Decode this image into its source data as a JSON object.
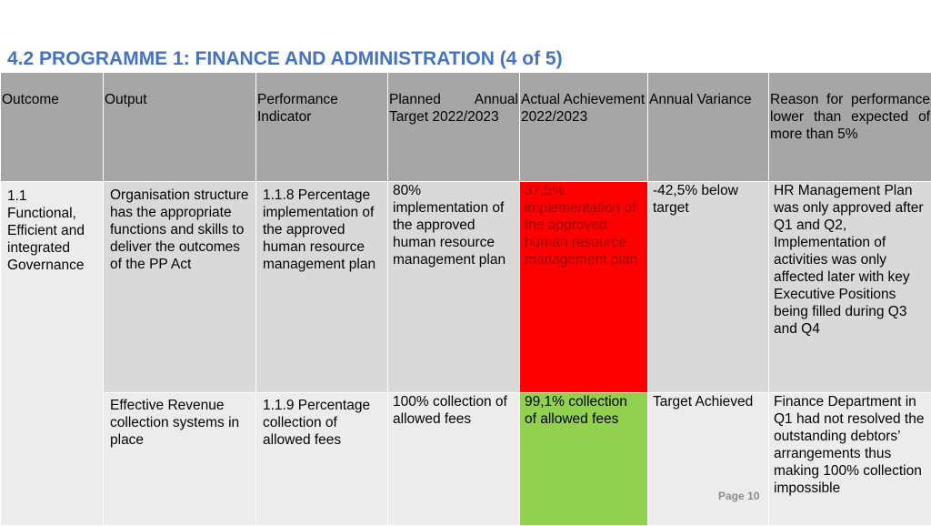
{
  "title": "4.2 PROGRAMME 1: FINANCE AND ADMINISTRATION (4 of 5)",
  "headers": {
    "outcome": "Outcome",
    "output": "Output",
    "indicator": "Performance Indicator",
    "target": "Planned Annual Target 2022/2023",
    "achievement": "Actual Achievement 2022/2023",
    "variance": "Annual Variance",
    "reason": "Reason for performance lower than expected of more than 5%"
  },
  "outcome": "1.1 Functional, Efficient and integrated Governance",
  "rows": [
    {
      "output": "Organisation structure has the appropriate functions and skills to deliver the outcomes of the PP Act",
      "indicator": "1.1.8 Percentage implementation of the approved human resource management plan",
      "target": "80% implementation of the approved human resource management plan",
      "achievement": "37,5% implementation of the approved human resource management plan",
      "variance": "-42,5% below target",
      "reason": "HR Management Plan was only approved after Q1 and Q2, Implementation of activities was only affected later with key Executive Positions being filled during Q3 and Q4",
      "status_color": "#ff0000"
    },
    {
      "output": "Effective Revenue collection systems in place",
      "indicator": "1.1.9 Percentage collection of allowed fees",
      "target": "100% collection of allowed fees",
      "achievement": "99,1% collection of allowed fees",
      "variance": "Target Achieved",
      "reason": "Finance Department in Q1 had not resolved the outstanding debtors’ arrangements thus making 100% collection impossible",
      "status_color": "#92d050"
    }
  ],
  "page_label": "Page 10"
}
